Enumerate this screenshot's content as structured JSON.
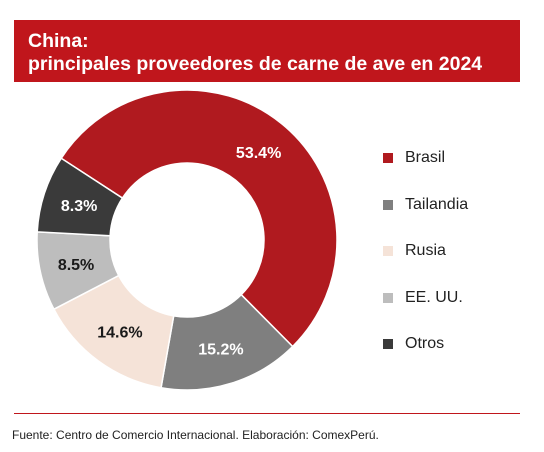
{
  "title": {
    "line1": "China:",
    "line2": "principales proveedores de carne de ave en 2024"
  },
  "chart_data": {
    "type": "pie",
    "variant": "donut",
    "slices": [
      {
        "name": "Brasil",
        "value": 53.4,
        "label": "53.4%",
        "color": "#b01a1f",
        "label_color": "#ffffff"
      },
      {
        "name": "Tailandia",
        "value": 15.2,
        "label": "15.2%",
        "color": "#7f7f7f",
        "label_color": "#ffffff"
      },
      {
        "name": "Rusia",
        "value": 14.6,
        "label": "14.6%",
        "color": "#f5e3d8",
        "label_color": "#1a1a1a"
      },
      {
        "name": "EE. UU.",
        "value": 8.5,
        "label": "8.5%",
        "color": "#bdbdbd",
        "label_color": "#1a1a1a"
      },
      {
        "name": "Otros",
        "value": 8.3,
        "label": "8.3%",
        "color": "#3a3a3a",
        "label_color": "#ffffff"
      }
    ],
    "legend_position": "right"
  },
  "source": "Fuente: Centro de Comercio Internacional. Elaboración: ComexPerú.",
  "colors": {
    "accent": "#c0161c",
    "title_text": "#ffffff"
  }
}
